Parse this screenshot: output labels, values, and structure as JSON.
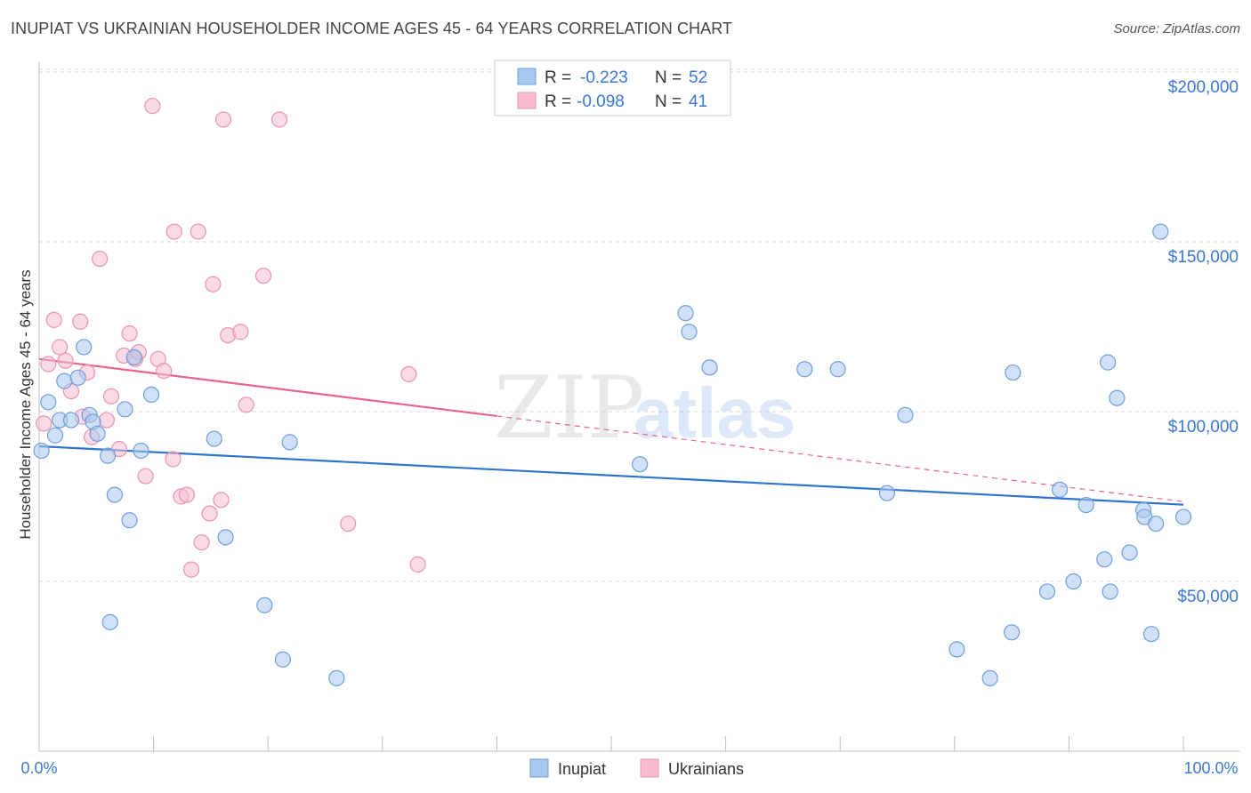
{
  "header": {
    "title": "INUPIAT VS UKRAINIAN HOUSEHOLDER INCOME AGES 45 - 64 YEARS CORRELATION CHART",
    "source": "Source: ZipAtlas.com"
  },
  "legend_box": {
    "rows": [
      {
        "r_label": "R = ",
        "r_value": "-0.223",
        "n_label": "N = ",
        "n_value": "52"
      },
      {
        "r_label": "R = ",
        "r_value": "-0.098",
        "n_label": "N = ",
        "n_value": "41"
      }
    ]
  },
  "watermark": {
    "zip": "ZIP",
    "atlas": "atlas"
  },
  "colors": {
    "inupiat_fill": "#a9c9f1",
    "inupiat_stroke": "#6d9fdc",
    "inupiat_line": "#2f73d0",
    "ukrainian_fill": "#f6bccd",
    "ukrainian_stroke": "#ea94af",
    "ukrainian_line": "#e8648f",
    "axis_text": "#3a78d6",
    "grid": "#d9d9d9"
  },
  "chart_data": {
    "type": "scatter",
    "title": "INUPIAT VS UKRAINIAN HOUSEHOLDER INCOME AGES 45 - 64 YEARS CORRELATION CHART",
    "xlabel": "",
    "ylabel": "Householder Income Ages 45 - 64 years",
    "xlim": [
      0,
      100
    ],
    "ylim": [
      0,
      210000
    ],
    "x_tick_labels": [
      "0.0%",
      "100.0%"
    ],
    "y_ticks": [
      50000,
      100000,
      150000,
      200000
    ],
    "y_tick_labels": [
      "$50,000",
      "$100,000",
      "$150,000",
      "$200,000"
    ],
    "grid": true,
    "legend_position": "bottom",
    "series": [
      {
        "name": "Inupiat",
        "r": -0.223,
        "n": 52,
        "trend": {
          "x0": 0,
          "y0": 89800,
          "x1": 100,
          "y1": 72600,
          "dashed_from": null
        },
        "points": [
          [
            0.2,
            88500
          ],
          [
            0.8,
            102800
          ],
          [
            1.4,
            93000
          ],
          [
            1.8,
            97500
          ],
          [
            2.2,
            109000
          ],
          [
            2.8,
            97500
          ],
          [
            3.4,
            110000
          ],
          [
            3.9,
            119000
          ],
          [
            4.4,
            99000
          ],
          [
            4.7,
            97000
          ],
          [
            5.1,
            93500
          ],
          [
            6.0,
            87000
          ],
          [
            6.6,
            75500
          ],
          [
            7.5,
            100700
          ],
          [
            7.9,
            68000
          ],
          [
            8.3,
            116000
          ],
          [
            8.9,
            88500
          ],
          [
            9.8,
            105000
          ],
          [
            6.2,
            38000
          ],
          [
            15.3,
            92000
          ],
          [
            16.3,
            63000
          ],
          [
            19.7,
            43000
          ],
          [
            21.3,
            27000
          ],
          [
            21.9,
            91000
          ],
          [
            26.0,
            21500
          ],
          [
            52.5,
            84500
          ],
          [
            56.5,
            129000
          ],
          [
            56.8,
            123500
          ],
          [
            58.6,
            113000
          ],
          [
            66.9,
            112500
          ],
          [
            69.8,
            112500
          ],
          [
            74.1,
            76000
          ],
          [
            75.7,
            99000
          ],
          [
            80.2,
            30000
          ],
          [
            83.1,
            21500
          ],
          [
            85.0,
            35000
          ],
          [
            85.1,
            111500
          ],
          [
            88.1,
            47000
          ],
          [
            89.2,
            77000
          ],
          [
            90.4,
            50000
          ],
          [
            91.5,
            72500
          ],
          [
            93.1,
            56500
          ],
          [
            93.4,
            114500
          ],
          [
            93.6,
            47000
          ],
          [
            94.2,
            104000
          ],
          [
            95.3,
            58500
          ],
          [
            96.5,
            71000
          ],
          [
            96.6,
            69000
          ],
          [
            97.2,
            34500
          ],
          [
            97.6,
            67000
          ],
          [
            98.0,
            153000
          ],
          [
            100.0,
            69000
          ]
        ]
      },
      {
        "name": "Ukrainians",
        "r": -0.098,
        "n": 41,
        "trend": {
          "x0": 0,
          "y0": 115500,
          "x1": 100,
          "y1": 73500,
          "dashed_from": 40
        },
        "points": [
          [
            0.4,
            96500
          ],
          [
            0.8,
            114000
          ],
          [
            1.3,
            127000
          ],
          [
            1.8,
            119000
          ],
          [
            2.3,
            115000
          ],
          [
            2.8,
            106000
          ],
          [
            3.6,
            126500
          ],
          [
            3.8,
            98500
          ],
          [
            4.2,
            111500
          ],
          [
            4.6,
            92500
          ],
          [
            5.3,
            145000
          ],
          [
            5.9,
            97500
          ],
          [
            6.3,
            104500
          ],
          [
            7.0,
            89000
          ],
          [
            7.4,
            116500
          ],
          [
            7.9,
            123000
          ],
          [
            8.4,
            115500
          ],
          [
            8.7,
            117500
          ],
          [
            9.3,
            81000
          ],
          [
            9.9,
            190000
          ],
          [
            10.4,
            115500
          ],
          [
            10.9,
            112000
          ],
          [
            11.7,
            86000
          ],
          [
            11.8,
            153000
          ],
          [
            12.4,
            75000
          ],
          [
            12.9,
            75500
          ],
          [
            13.3,
            53500
          ],
          [
            13.9,
            153000
          ],
          [
            14.2,
            61500
          ],
          [
            14.9,
            70000
          ],
          [
            15.2,
            137500
          ],
          [
            15.9,
            74000
          ],
          [
            16.1,
            186000
          ],
          [
            16.5,
            122500
          ],
          [
            17.6,
            123500
          ],
          [
            18.1,
            102000
          ],
          [
            19.6,
            140000
          ],
          [
            21.0,
            186000
          ],
          [
            27.0,
            67000
          ],
          [
            32.3,
            111000
          ],
          [
            33.1,
            55000
          ]
        ]
      }
    ]
  },
  "bottom_legend": [
    {
      "label": "Inupiat"
    },
    {
      "label": "Ukrainians"
    }
  ]
}
